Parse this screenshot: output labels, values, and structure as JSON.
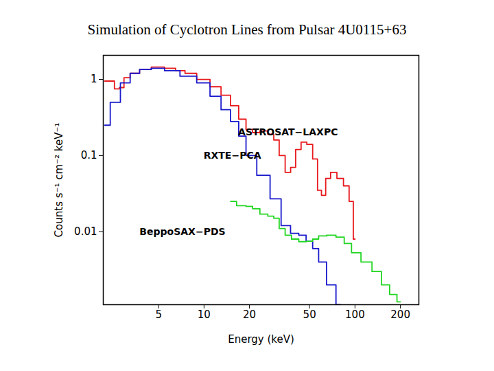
{
  "chart_data": {
    "type": "line",
    "title": "Simulation of Cyclotron Lines from Pulsar 4U0115+63",
    "x_label": "Energy (keV)",
    "y_label": "Counts s⁻¹ cm⁻² keV⁻¹",
    "log": true,
    "xlim": [
      2.15,
      265
    ],
    "ylim": [
      0.0011,
      2.07
    ],
    "xticks": [
      5,
      10,
      20,
      50,
      100,
      200
    ],
    "yticks": [
      0.01,
      0.1,
      1
    ],
    "grid": false,
    "series": [
      {
        "name": "ASTROSAT−LAXPC",
        "color": "#e8191c",
        "x": [
          2.2,
          2.5,
          2.6,
          2.9,
          3,
          3.5,
          4,
          5,
          6,
          7,
          8,
          10,
          12,
          14,
          16,
          18,
          20,
          22,
          25,
          28,
          30,
          33,
          36,
          39,
          42,
          46,
          50,
          55,
          58,
          62,
          66,
          72,
          80,
          88,
          95,
          100
        ],
        "values": [
          0.95,
          0.95,
          0.75,
          0.78,
          1.05,
          1.2,
          1.35,
          1.45,
          1.4,
          1.3,
          1.2,
          1.0,
          0.8,
          0.62,
          0.45,
          0.3,
          0.22,
          0.2,
          0.21,
          0.19,
          0.16,
          0.1,
          0.06,
          0.07,
          0.12,
          0.15,
          0.14,
          0.09,
          0.035,
          0.03,
          0.05,
          0.06,
          0.05,
          0.04,
          0.025,
          0.008
        ]
      },
      {
        "name": "RXTE−PCA",
        "color": "#1a1acc",
        "x": [
          2.2,
          2.6,
          3,
          3.5,
          4,
          5,
          6,
          8,
          10,
          12,
          14,
          16,
          18,
          20,
          25,
          30,
          35,
          40,
          45,
          50,
          55,
          60,
          70,
          80
        ],
        "values": [
          0.25,
          0.5,
          0.9,
          1.2,
          1.35,
          1.4,
          1.3,
          1.1,
          0.9,
          0.6,
          0.4,
          0.28,
          0.18,
          0.1,
          0.055,
          0.027,
          0.012,
          0.0095,
          0.009,
          0.0075,
          0.006,
          0.004,
          0.002,
          0.0011
        ]
      },
      {
        "name": "BeppoSAX−PDS",
        "color": "#22d622",
        "x": [
          15,
          18,
          20,
          22,
          25,
          28,
          30,
          33,
          36,
          40,
          45,
          50,
          55,
          60,
          70,
          80,
          90,
          100,
          120,
          140,
          160,
          180,
          200
        ],
        "values": [
          0.025,
          0.022,
          0.0215,
          0.02,
          0.017,
          0.016,
          0.015,
          0.011,
          0.009,
          0.008,
          0.0074,
          0.0075,
          0.008,
          0.0088,
          0.009,
          0.0085,
          0.007,
          0.0053,
          0.004,
          0.003,
          0.002,
          0.0015,
          0.0012
        ]
      }
    ],
    "annotations": [
      {
        "text": "ASTROSAT−LAXPC",
        "x": 36,
        "y": 0.2,
        "color": "#000000"
      },
      {
        "text": "RXTE−PCA",
        "x": 15.4,
        "y": 0.1,
        "color": "#000000"
      },
      {
        "text": "BeppoSAX−PDS",
        "x": 7.2,
        "y": 0.01,
        "color": "#000000"
      }
    ]
  }
}
